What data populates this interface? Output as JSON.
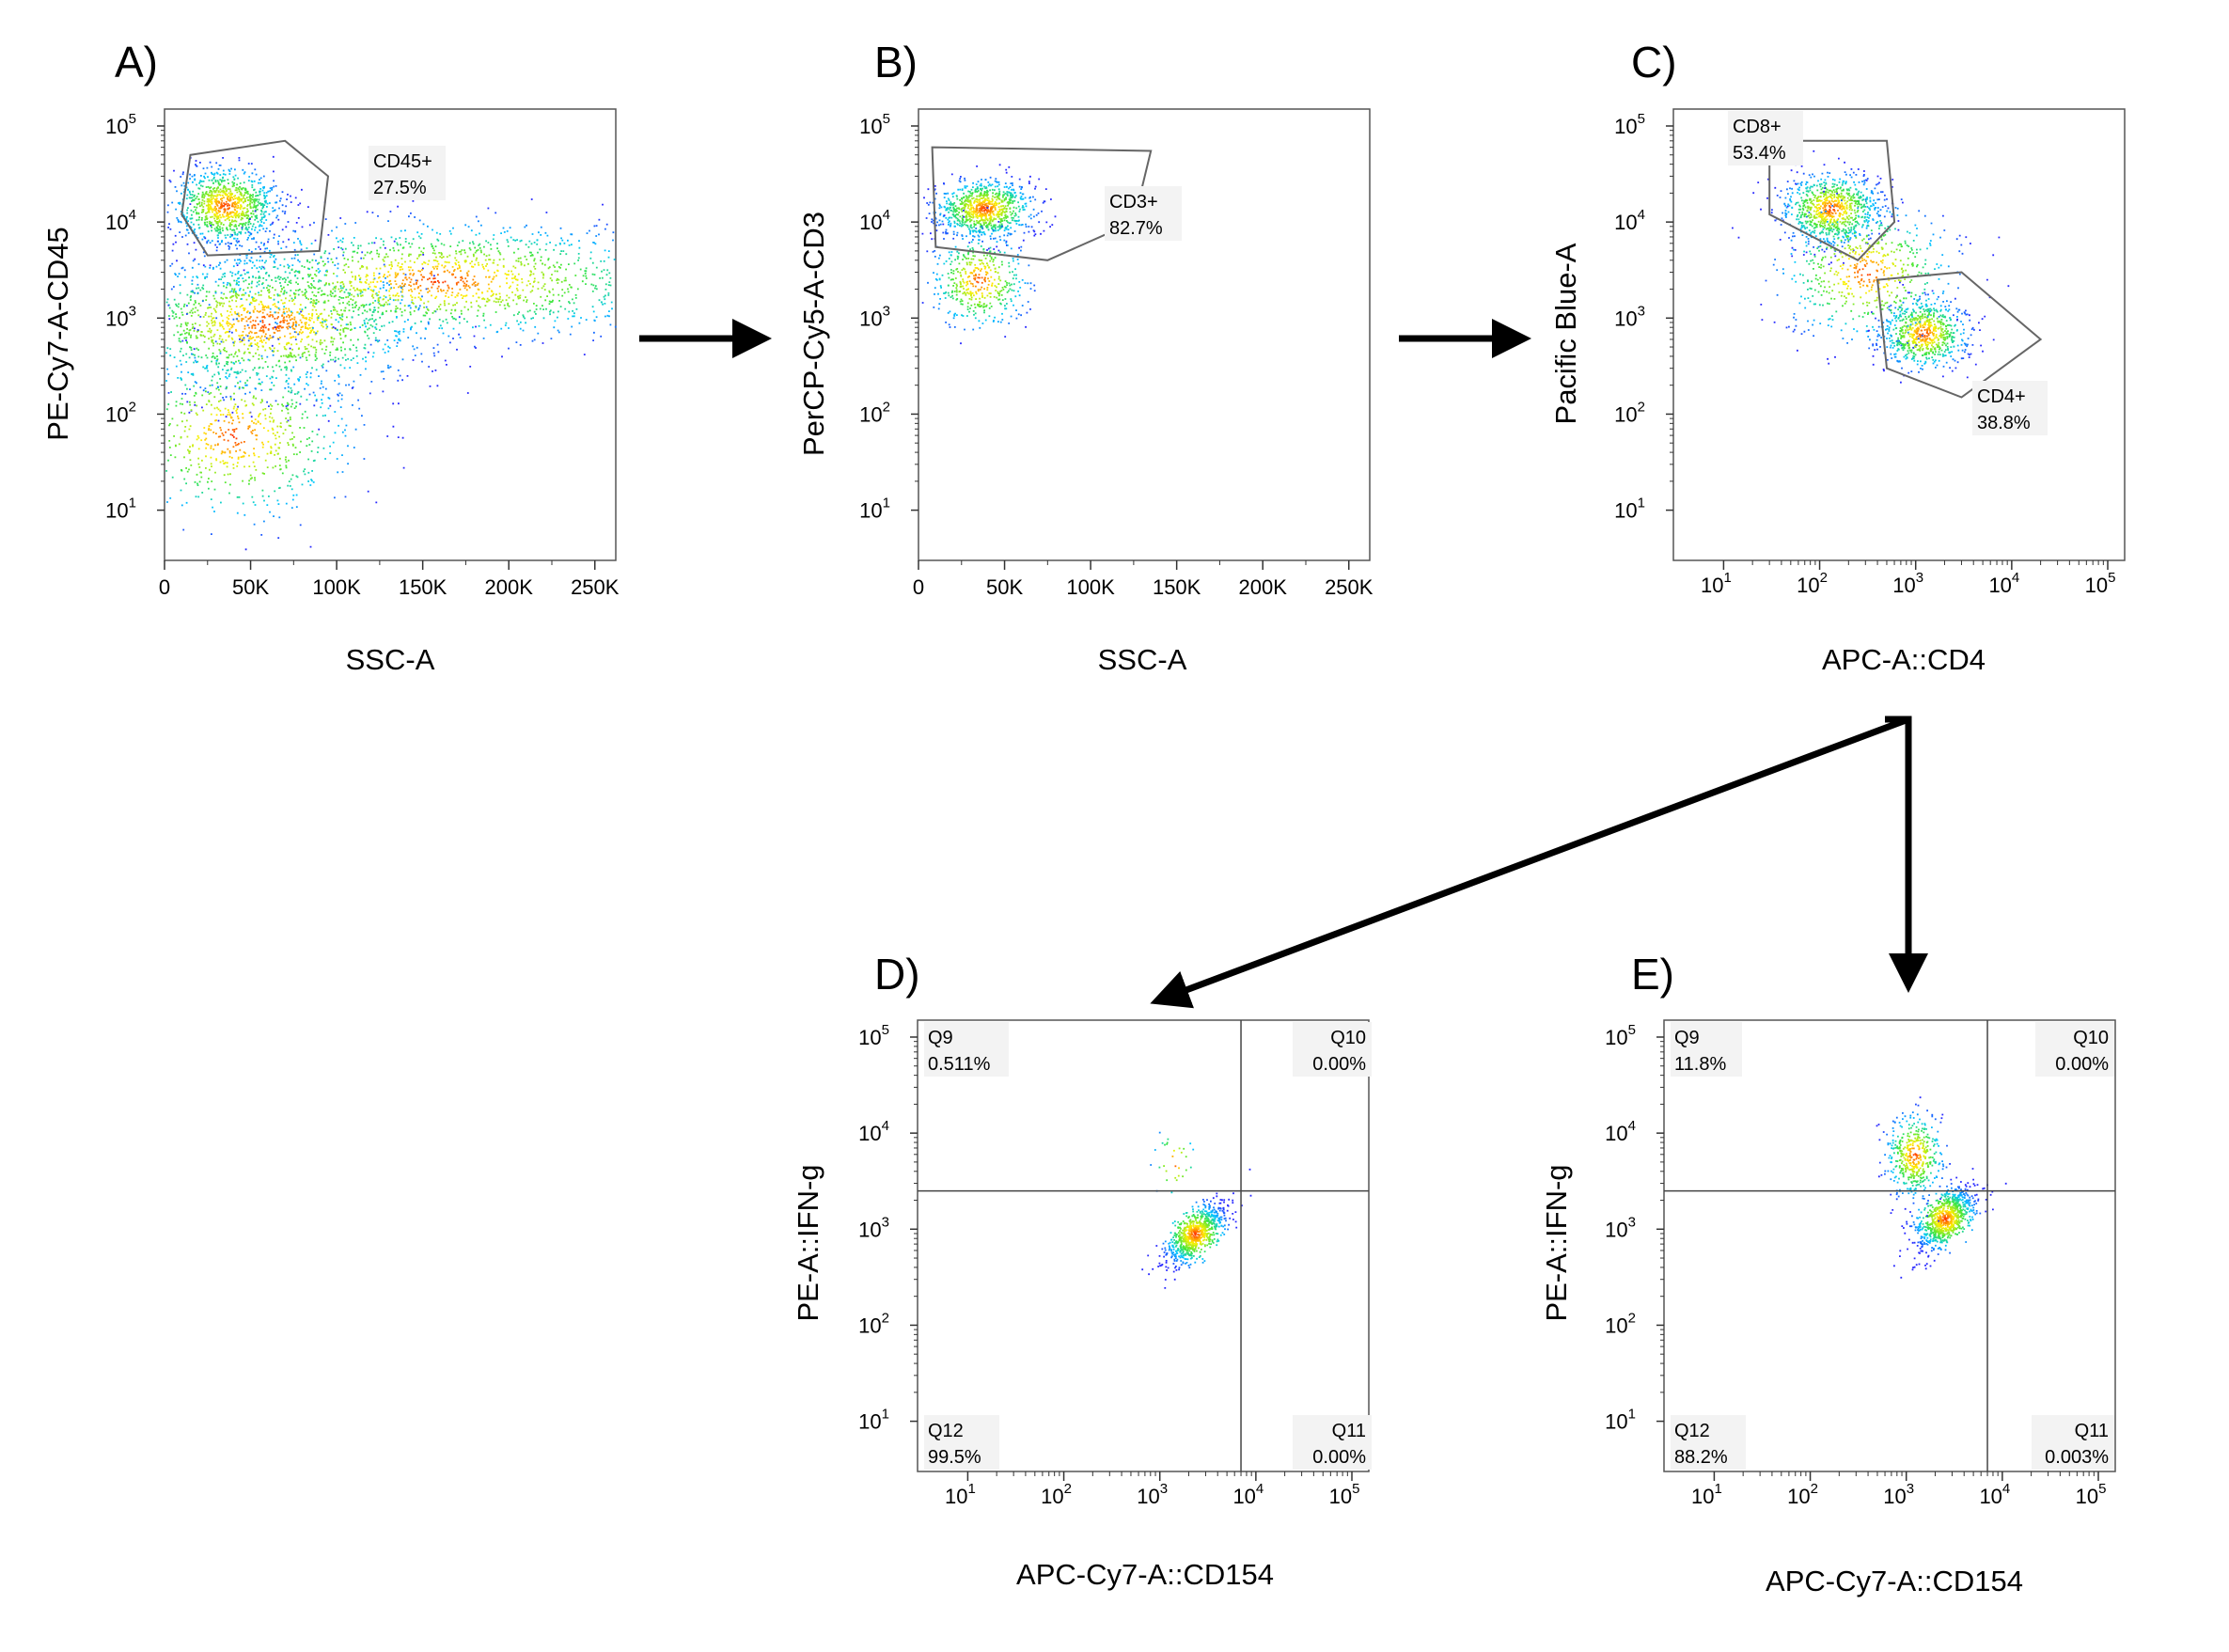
{
  "chart_data": [
    {
      "panel": "A)",
      "type": "scatter",
      "xlabel": "SSC-A",
      "ylabel": "PE-Cy7-A-CD45",
      "x_scale": "linear",
      "x_ticks": [
        "0",
        "50K",
        "100K",
        "150K",
        "200K",
        "250K"
      ],
      "x_tick_values": [
        0,
        50000,
        100000,
        150000,
        200000,
        250000
      ],
      "xlim": [
        0,
        262144
      ],
      "y_scale": "log",
      "y_ticks": [
        {
          "base": "10",
          "exp": "1"
        },
        {
          "base": "10",
          "exp": "2"
        },
        {
          "base": "10",
          "exp": "3"
        },
        {
          "base": "10",
          "exp": "4"
        },
        {
          "base": "10",
          "exp": "5"
        }
      ],
      "ylim": [
        3,
        150000
      ],
      "gates": [
        {
          "name": "CD45+",
          "percent": "27.5%"
        }
      ],
      "populations": [
        {
          "x": 35000,
          "y": 15000,
          "sx": 15000,
          "sy_dec": 0.2,
          "n": 950
        },
        {
          "x": 60000,
          "y": 900,
          "sx": 45000,
          "sy_dec": 0.35,
          "n": 1500
        },
        {
          "x": 160000,
          "y": 2500,
          "sx": 70000,
          "sy_dec": 0.3,
          "n": 1500
        },
        {
          "x": 40000,
          "y": 60,
          "sx": 35000,
          "sy_dec": 0.45,
          "n": 700
        }
      ]
    },
    {
      "panel": "B)",
      "type": "scatter",
      "xlabel": "SSC-A",
      "ylabel": "PerCP-Cy5-A-CD3",
      "x_scale": "linear",
      "x_ticks": [
        "0",
        "50K",
        "100K",
        "150K",
        "200K",
        "250K"
      ],
      "x_tick_values": [
        0,
        50000,
        100000,
        150000,
        200000,
        250000
      ],
      "xlim": [
        0,
        262144
      ],
      "y_scale": "log",
      "y_ticks": [
        {
          "base": "10",
          "exp": "1"
        },
        {
          "base": "10",
          "exp": "2"
        },
        {
          "base": "10",
          "exp": "3"
        },
        {
          "base": "10",
          "exp": "4"
        },
        {
          "base": "10",
          "exp": "5"
        }
      ],
      "ylim": [
        3,
        150000
      ],
      "gates": [
        {
          "name": "CD3+",
          "percent": "82.7%"
        }
      ],
      "populations": [
        {
          "x": 38000,
          "y": 14000,
          "sx": 14000,
          "sy_dec": 0.15,
          "n": 900
        },
        {
          "x": 35000,
          "y": 2500,
          "sx": 14000,
          "sy_dec": 0.25,
          "n": 450
        }
      ]
    },
    {
      "panel": "C)",
      "type": "scatter",
      "xlabel": "APC-A::CD4",
      "ylabel": "Pacific Blue-A",
      "x_scale": "log",
      "x_ticks": [
        {
          "base": "10",
          "exp": "1"
        },
        {
          "base": "10",
          "exp": "2"
        },
        {
          "base": "10",
          "exp": "3"
        },
        {
          "base": "10",
          "exp": "4"
        },
        {
          "base": "10",
          "exp": "5"
        }
      ],
      "xlim": [
        3,
        150000
      ],
      "y_scale": "log",
      "y_ticks": [
        {
          "base": "10",
          "exp": "1"
        },
        {
          "base": "10",
          "exp": "2"
        },
        {
          "base": "10",
          "exp": "3"
        },
        {
          "base": "10",
          "exp": "4"
        },
        {
          "base": "10",
          "exp": "5"
        }
      ],
      "ylim": [
        3,
        150000
      ],
      "gates": [
        {
          "name": "CD8+",
          "percent": "53.4%"
        },
        {
          "name": "CD4+",
          "percent": "38.8%"
        }
      ],
      "populations": [
        {
          "x": 130,
          "y": 14000,
          "sx_dec": 0.25,
          "sy_dec": 0.18,
          "n": 850
        },
        {
          "x": 1200,
          "y": 700,
          "sx_dec": 0.22,
          "sy_dec": 0.18,
          "n": 700
        },
        {
          "x": 300,
          "y": 3000,
          "sx_dec": 0.45,
          "sy_dec": 0.35,
          "n": 600
        }
      ]
    },
    {
      "panel": "D)",
      "type": "scatter",
      "xlabel": "APC-Cy7-A::CD154",
      "ylabel": "PE-A::IFN-g",
      "x_scale": "log",
      "x_ticks": [
        {
          "base": "10",
          "exp": "1"
        },
        {
          "base": "10",
          "exp": "2"
        },
        {
          "base": "10",
          "exp": "3"
        },
        {
          "base": "10",
          "exp": "4"
        },
        {
          "base": "10",
          "exp": "5"
        }
      ],
      "xlim": [
        3,
        150000
      ],
      "y_scale": "log",
      "y_ticks": [
        {
          "base": "10",
          "exp": "1"
        },
        {
          "base": "10",
          "exp": "2"
        },
        {
          "base": "10",
          "exp": "3"
        },
        {
          "base": "10",
          "exp": "4"
        },
        {
          "base": "10",
          "exp": "5"
        }
      ],
      "ylim": [
        3,
        150000
      ],
      "quadrant_divider": {
        "x": 7000,
        "y": 2500
      },
      "quadrants": [
        {
          "name": "Q9",
          "percent": "0.511%",
          "position": "top-left"
        },
        {
          "name": "Q10",
          "percent": "0.00%",
          "position": "top-right"
        },
        {
          "name": "Q12",
          "percent": "99.5%",
          "position": "bottom-left"
        },
        {
          "name": "Q11",
          "percent": "0.00%",
          "position": "bottom-right"
        }
      ],
      "populations": [
        {
          "x": 2300,
          "y": 900,
          "sx_dec": 0.16,
          "sy_dec": 0.16,
          "n": 800,
          "corr": 0.7
        },
        {
          "x": 1400,
          "y": 5000,
          "sx_dec": 0.12,
          "sy_dec": 0.2,
          "n": 30
        }
      ]
    },
    {
      "panel": "E)",
      "type": "scatter",
      "xlabel": "APC-Cy7-A::CD154",
      "ylabel": "PE-A::IFN-g",
      "x_scale": "log",
      "x_ticks": [
        {
          "base": "10",
          "exp": "1"
        },
        {
          "base": "10",
          "exp": "2"
        },
        {
          "base": "10",
          "exp": "3"
        },
        {
          "base": "10",
          "exp": "4"
        },
        {
          "base": "10",
          "exp": "5"
        }
      ],
      "xlim": [
        3,
        150000
      ],
      "y_scale": "log",
      "y_ticks": [
        {
          "base": "10",
          "exp": "1"
        },
        {
          "base": "10",
          "exp": "2"
        },
        {
          "base": "10",
          "exp": "3"
        },
        {
          "base": "10",
          "exp": "4"
        },
        {
          "base": "10",
          "exp": "5"
        }
      ],
      "ylim": [
        3,
        150000
      ],
      "quadrant_divider": {
        "x": 7000,
        "y": 2500
      },
      "quadrants": [
        {
          "name": "Q9",
          "percent": "11.8%",
          "position": "top-left"
        },
        {
          "name": "Q10",
          "percent": "0.00%",
          "position": "top-right"
        },
        {
          "name": "Q12",
          "percent": "88.2%",
          "position": "bottom-left"
        },
        {
          "name": "Q11",
          "percent": "0.003%",
          "position": "bottom-right"
        }
      ],
      "populations": [
        {
          "x": 2500,
          "y": 1300,
          "sx_dec": 0.16,
          "sy_dec": 0.16,
          "n": 850,
          "corr": 0.6
        },
        {
          "x": 1200,
          "y": 6000,
          "sx_dec": 0.15,
          "sy_dec": 0.22,
          "n": 450
        }
      ]
    }
  ]
}
